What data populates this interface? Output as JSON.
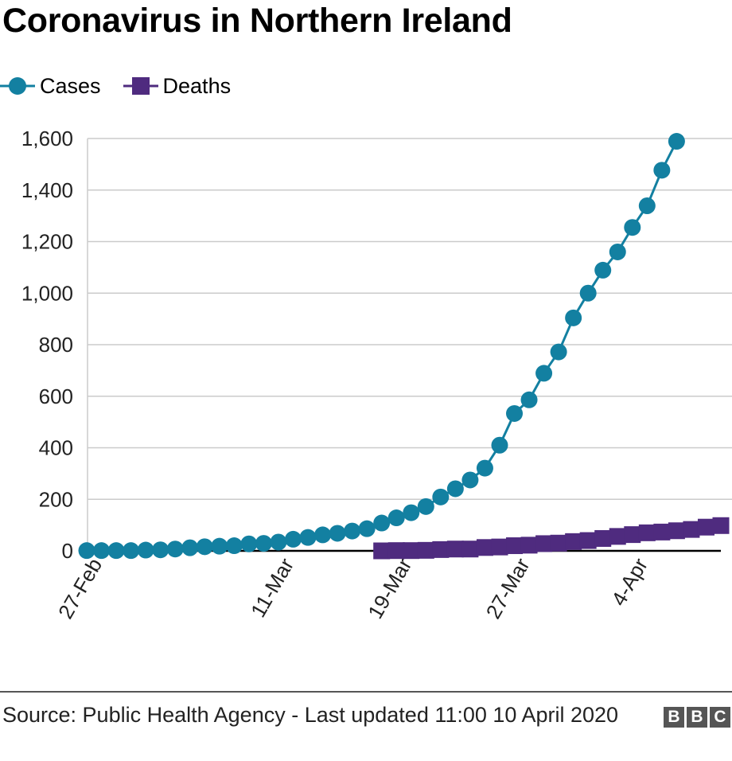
{
  "title": "Coronavirus in Northern Ireland",
  "legend": {
    "cases": "Cases",
    "deaths": "Deaths"
  },
  "colors": {
    "cases": "#1380A1",
    "deaths": "#4F2B7F",
    "grid": "#cbcbcb",
    "axis": "#000000"
  },
  "footer": {
    "source": "Source: Public Health Agency - Last updated 11:00 10 April 2020",
    "logo": [
      "B",
      "B",
      "C"
    ]
  },
  "chart_data": {
    "type": "line",
    "title": "Coronavirus in Northern Ireland",
    "xlabel": "",
    "ylabel": "",
    "x": [
      "27-Feb",
      "28-Feb",
      "29-Feb",
      "1-Mar",
      "2-Mar",
      "3-Mar",
      "4-Mar",
      "5-Mar",
      "6-Mar",
      "7-Mar",
      "8-Mar",
      "9-Mar",
      "10-Mar",
      "11-Mar",
      "12-Mar",
      "13-Mar",
      "14-Mar",
      "15-Mar",
      "16-Mar",
      "17-Mar",
      "18-Mar",
      "19-Mar",
      "20-Mar",
      "21-Mar",
      "22-Mar",
      "23-Mar",
      "24-Mar",
      "25-Mar",
      "26-Mar",
      "27-Mar",
      "28-Mar",
      "29-Mar",
      "30-Mar",
      "31-Mar",
      "1-Apr",
      "2-Apr",
      "3-Apr",
      "4-Apr",
      "5-Apr",
      "6-Apr",
      "7-Apr",
      "8-Apr",
      "9-Apr",
      "10-Apr"
    ],
    "x_tick_labels": [
      "27-Feb",
      "11-Mar",
      "19-Mar",
      "27-Mar",
      "4-Apr"
    ],
    "ylim": [
      0,
      1600
    ],
    "yticks": [
      0,
      200,
      400,
      600,
      800,
      1000,
      1200,
      1400,
      1600
    ],
    "ytick_labels": [
      "0",
      "200",
      "400",
      "600",
      "800",
      "1,000",
      "1,200",
      "1,400",
      "1,600"
    ],
    "grid": true,
    "legend_position": "top-left",
    "series": [
      {
        "name": "Cases",
        "marker": "circle",
        "values": [
          1,
          1,
          1,
          1,
          3,
          4,
          7,
          12,
          16,
          18,
          20,
          27,
          29,
          34,
          45,
          52,
          62,
          68,
          77,
          86,
          108,
          128,
          148,
          172,
          209,
          241,
          275,
          321,
          410,
          533,
          586,
          689,
          772,
          904,
          1000,
          1089,
          1160,
          1255,
          1339,
          1477,
          1589,
          null,
          null,
          null
        ]
      },
      {
        "name": "Deaths",
        "marker": "square",
        "values": [
          null,
          null,
          null,
          null,
          null,
          null,
          null,
          null,
          null,
          null,
          null,
          null,
          null,
          null,
          null,
          null,
          null,
          null,
          null,
          null,
          0,
          1,
          1,
          2,
          5,
          7,
          7,
          13,
          15,
          20,
          22,
          28,
          30,
          36,
          40,
          48,
          56,
          63,
          70,
          73,
          78,
          83,
          92,
          98
        ]
      }
    ]
  }
}
